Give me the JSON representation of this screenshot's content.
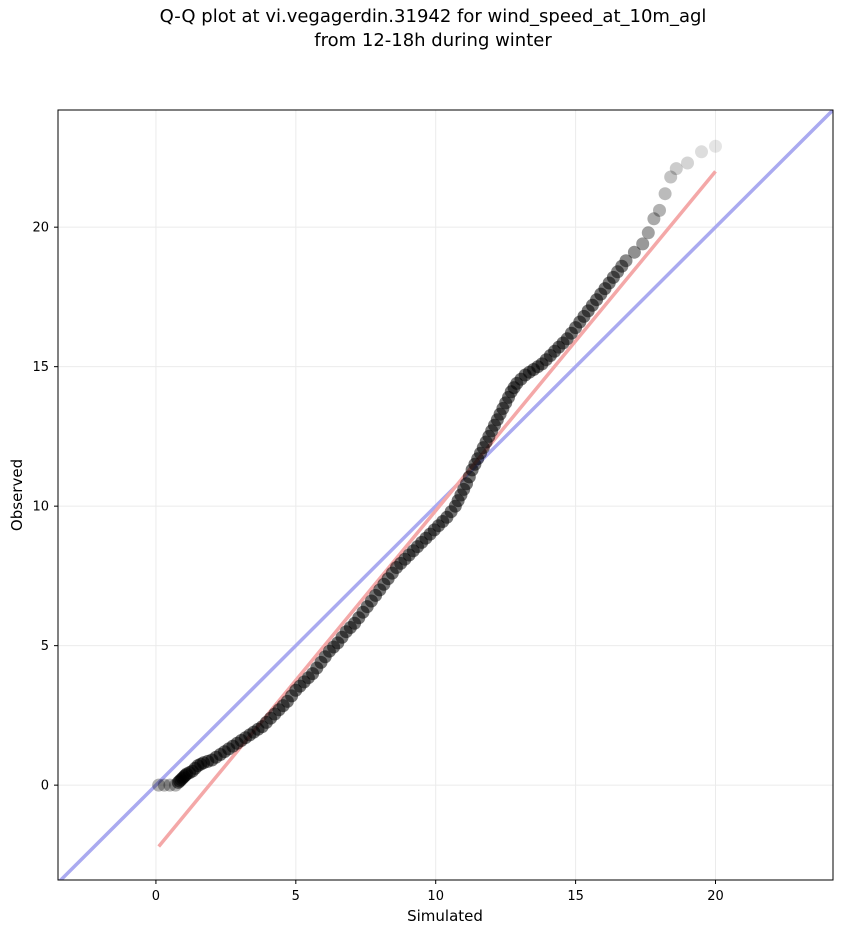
{
  "chart_data": {
    "type": "scatter",
    "title_lines": [
      "Q-Q plot at vi.vegagerdin.31942 for wind_speed_at_10m_agl",
      "from 12-18h during winter"
    ],
    "xlabel": "Simulated",
    "ylabel": "Observed",
    "xlim": [
      -3.5,
      24.2
    ],
    "ylim": [
      -3.4,
      24.2
    ],
    "xticks": [
      0,
      5,
      10,
      15,
      20
    ],
    "yticks": [
      0,
      5,
      10,
      15,
      20
    ],
    "grid": true,
    "reference_line": {
      "name": "1:1 line",
      "color": "#aaaaf0",
      "points": [
        [
          -3.5,
          -3.5
        ],
        [
          24.2,
          24.2
        ]
      ]
    },
    "fit_line": {
      "name": "fit line",
      "color": "#f4a8a8",
      "points": [
        [
          0.1,
          -2.2
        ],
        [
          20.0,
          22.0
        ]
      ]
    },
    "point_color": "#000000",
    "quantiles": [
      [
        0.1,
        0.0
      ],
      [
        0.3,
        0.0
      ],
      [
        0.5,
        0.0
      ],
      [
        0.7,
        0.0
      ],
      [
        0.8,
        0.1
      ],
      [
        0.9,
        0.2
      ],
      [
        1.0,
        0.3
      ],
      [
        1.1,
        0.4
      ],
      [
        1.3,
        0.5
      ],
      [
        1.5,
        0.7
      ],
      [
        1.7,
        0.8
      ],
      [
        2.0,
        0.9
      ],
      [
        2.3,
        1.1
      ],
      [
        2.6,
        1.3
      ],
      [
        2.9,
        1.5
      ],
      [
        3.2,
        1.7
      ],
      [
        3.5,
        1.9
      ],
      [
        3.8,
        2.1
      ],
      [
        4.1,
        2.4
      ],
      [
        4.4,
        2.7
      ],
      [
        4.7,
        3.0
      ],
      [
        5.0,
        3.4
      ],
      [
        5.3,
        3.7
      ],
      [
        5.6,
        4.0
      ],
      [
        5.9,
        4.4
      ],
      [
        6.2,
        4.8
      ],
      [
        6.5,
        5.1
      ],
      [
        6.8,
        5.5
      ],
      [
        7.1,
        5.8
      ],
      [
        7.4,
        6.2
      ],
      [
        7.7,
        6.6
      ],
      [
        8.0,
        7.0
      ],
      [
        8.3,
        7.4
      ],
      [
        8.6,
        7.8
      ],
      [
        8.9,
        8.1
      ],
      [
        9.2,
        8.4
      ],
      [
        9.5,
        8.7
      ],
      [
        9.8,
        9.0
      ],
      [
        10.1,
        9.3
      ],
      [
        10.4,
        9.6
      ],
      [
        10.7,
        10.0
      ],
      [
        10.9,
        10.4
      ],
      [
        11.1,
        10.8
      ],
      [
        11.3,
        11.3
      ],
      [
        11.5,
        11.7
      ],
      [
        11.7,
        12.1
      ],
      [
        11.9,
        12.5
      ],
      [
        12.1,
        12.9
      ],
      [
        12.3,
        13.3
      ],
      [
        12.5,
        13.7
      ],
      [
        12.7,
        14.1
      ],
      [
        12.9,
        14.4
      ],
      [
        13.2,
        14.7
      ],
      [
        13.5,
        14.9
      ],
      [
        13.8,
        15.1
      ],
      [
        14.1,
        15.4
      ],
      [
        14.4,
        15.7
      ],
      [
        14.7,
        16.0
      ],
      [
        15.0,
        16.4
      ],
      [
        15.3,
        16.8
      ],
      [
        15.6,
        17.2
      ],
      [
        15.9,
        17.6
      ],
      [
        16.2,
        18.0
      ],
      [
        16.5,
        18.4
      ],
      [
        16.8,
        18.8
      ],
      [
        17.1,
        19.1
      ],
      [
        17.4,
        19.4
      ],
      [
        17.6,
        19.8
      ],
      [
        17.8,
        20.3
      ],
      [
        18.0,
        20.6
      ],
      [
        18.2,
        21.2
      ],
      [
        18.4,
        21.8
      ],
      [
        18.6,
        22.1
      ],
      [
        19.0,
        22.3
      ],
      [
        19.5,
        22.7
      ],
      [
        20.0,
        22.9
      ]
    ]
  }
}
